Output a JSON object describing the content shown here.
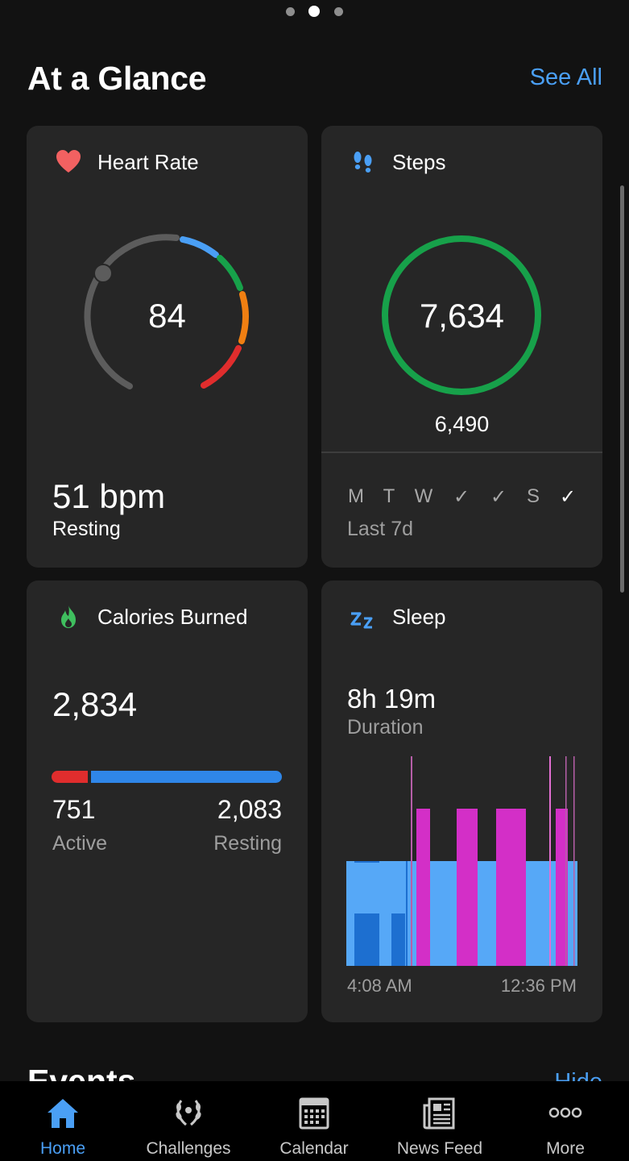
{
  "page": {
    "title": "At a Glance",
    "see_all": "See All",
    "events_title": "Events",
    "events_action": "Hide"
  },
  "heart_rate": {
    "title": "Heart Rate",
    "current": "84",
    "resting_value": "51 bpm",
    "resting_label": "Resting",
    "icon": "heart-icon",
    "zone_colors": [
      "#5c5c5c",
      "#4a9ff5",
      "#17a14a",
      "#f07f12",
      "#e02d2d"
    ]
  },
  "steps": {
    "title": "Steps",
    "count": "7,634",
    "goal": "6,490",
    "goal_progress": 1.0,
    "ring_color": "#17a14a",
    "days": [
      {
        "label": "M",
        "met": false
      },
      {
        "label": "T",
        "met": false
      },
      {
        "label": "W",
        "met": false
      },
      {
        "label": "✓",
        "met": true
      },
      {
        "label": "✓",
        "met": true
      },
      {
        "label": "S",
        "met": false
      },
      {
        "label": "✓",
        "met": true,
        "today": true
      }
    ],
    "period_label": "Last 7d",
    "icon": "footprints-icon"
  },
  "calories": {
    "title": "Calories Burned",
    "total": "2,834",
    "active_value": "751",
    "active_label": "Active",
    "resting_value": "2,083",
    "resting_label": "Resting",
    "active_fraction": 0.265,
    "active_color": "#e02d2d",
    "resting_color": "#2f86e8",
    "icon": "flame-icon"
  },
  "sleep": {
    "title": "Sleep",
    "duration_value": "8h 19m",
    "duration_label": "Duration",
    "start_time": "4:08 AM",
    "end_time": "12:36 PM",
    "icon": "zz-icon",
    "stage_colors": {
      "deep": "#1d6fd0",
      "light": "#56a8f7",
      "rem": "#d32fc7"
    }
  },
  "tabbar": {
    "items": [
      {
        "label": "Home",
        "icon": "home-icon",
        "active": true
      },
      {
        "label": "Challenges",
        "icon": "laurel-icon",
        "active": false
      },
      {
        "label": "Calendar",
        "icon": "calendar-icon",
        "active": false
      },
      {
        "label": "News Feed",
        "icon": "newspaper-icon",
        "active": false
      },
      {
        "label": "More",
        "icon": "more-icon",
        "active": false
      }
    ]
  }
}
